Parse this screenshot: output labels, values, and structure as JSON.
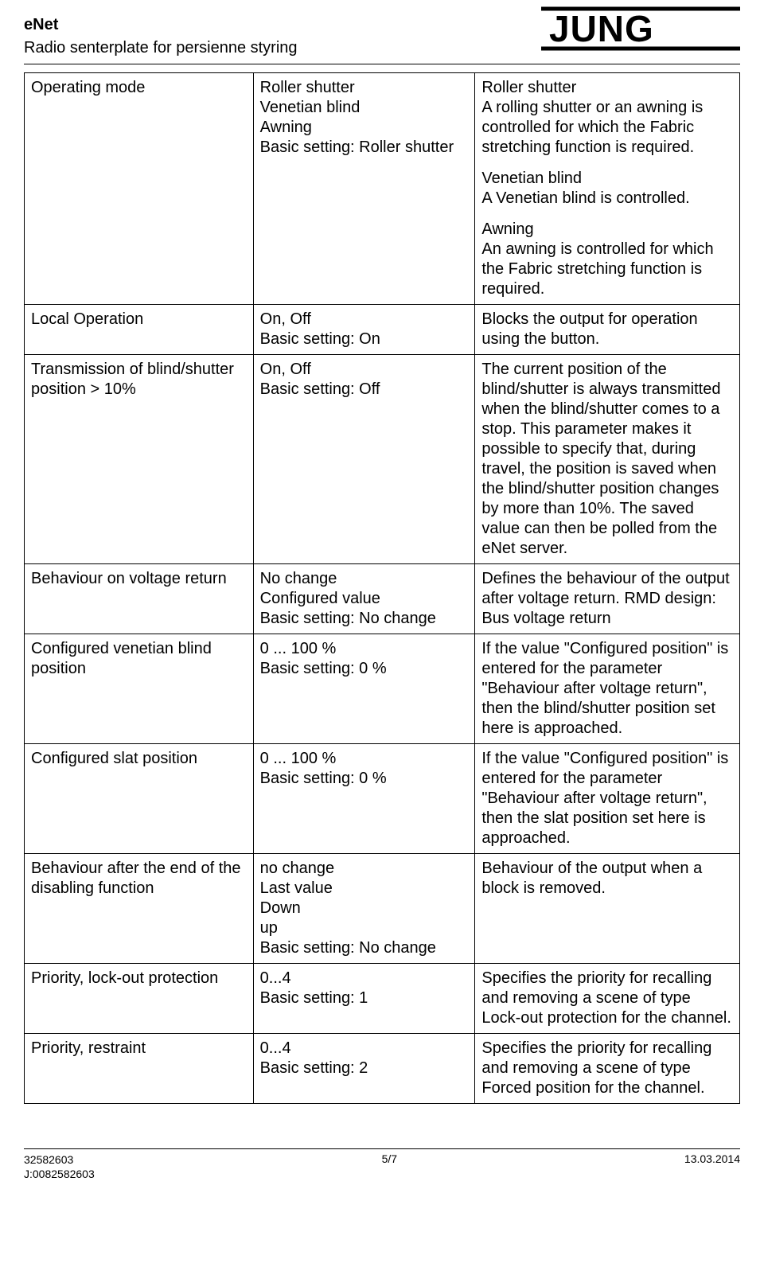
{
  "header": {
    "title": "eNet",
    "subtitle": "Radio senterplate for persienne styring",
    "logo": "JUNG"
  },
  "rows": [
    {
      "param": "Operating mode",
      "setting": "Roller shutter\nVenetian blind\nAwning\nBasic setting: Roller shutter",
      "descriptions": [
        "Roller shutter\nA rolling shutter or an awning is controlled for which the Fabric stretching function is required.",
        "Venetian blind\nA Venetian blind is controlled.",
        "Awning\nAn awning is controlled for which the Fabric stretching function is required."
      ]
    },
    {
      "param": "Local Operation",
      "setting": "On, Off\nBasic setting: On",
      "descriptions": [
        "Blocks the output for operation using the button."
      ]
    },
    {
      "param": "Transmission of blind/shutter position > 10%",
      "setting": "On, Off\nBasic setting: Off",
      "descriptions": [
        "The current position of the blind/shutter is always transmitted when the blind/shutter comes to a stop. This parameter makes it possible to specify that, during travel, the position is saved when the blind/shutter position changes by more than 10%. The saved value can then be polled from the eNet server."
      ]
    },
    {
      "param": "Behaviour on voltage return",
      "setting": "No change\nConfigured value\nBasic setting: No change",
      "descriptions": [
        "Defines the behaviour of the output after voltage return. RMD design: Bus voltage return"
      ]
    },
    {
      "param": "Configured venetian blind position",
      "setting": "0 ... 100 %\nBasic setting: 0 %",
      "descriptions": [
        "If the value \"Configured position\" is entered for the parameter \"Behaviour after voltage return\", then the blind/shutter position set here is approached."
      ]
    },
    {
      "param": "Configured slat position",
      "setting": "0 ... 100 %\nBasic setting: 0 %",
      "descriptions": [
        "If the value \"Configured position\" is entered for the parameter \"Behaviour after voltage return\", then the slat position set here is approached."
      ]
    },
    {
      "param": "Behaviour after the end of the disabling function",
      "setting": "no change\nLast value\nDown\nup\nBasic setting: No change",
      "descriptions": [
        "Behaviour of the output when a block is removed."
      ]
    },
    {
      "param": "Priority, lock-out protection",
      "setting": "0...4\nBasic setting: 1",
      "descriptions": [
        "Specifies the priority for recalling and removing a scene of type Lock-out protection for the channel."
      ]
    },
    {
      "param": "Priority, restraint",
      "setting": "0...4\nBasic setting: 2",
      "descriptions": [
        "Specifies the priority for recalling and removing a scene of type Forced position for the channel."
      ]
    }
  ],
  "footer": {
    "left_line1": "32582603",
    "left_line2": "J:0082582603",
    "page": "5/7",
    "date": "13.03.2014"
  }
}
